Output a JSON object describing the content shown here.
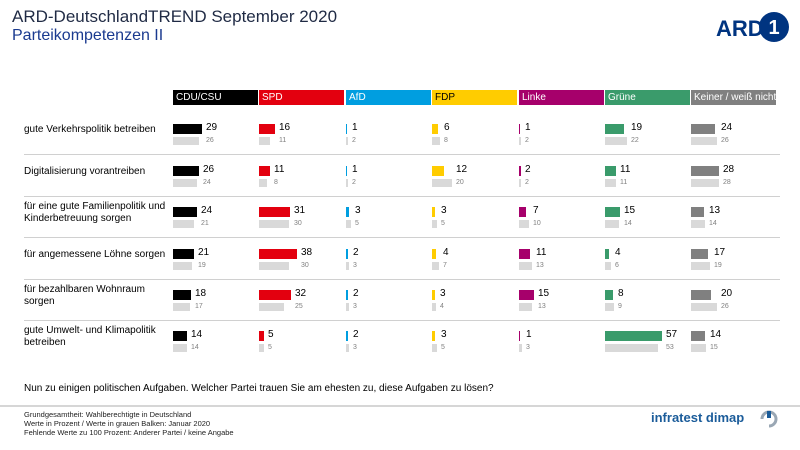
{
  "header": {
    "title": "ARD-DeutschlandTREND September 2020",
    "subtitle": "Parteikompetenzen II",
    "logo_text": "ARD"
  },
  "colors": {
    "CDU/CSU": "#000000",
    "SPD": "#e3000f",
    "AfD": "#009ee0",
    "FDP": "#ffcc00",
    "Linke": "#a6006b",
    "Grüne": "#3a9b6b",
    "Keiner / weiß nicht": "#808080",
    "previous": "#d9d9d9"
  },
  "chart_data": {
    "type": "bar",
    "title": "Parteikompetenzen II",
    "series_names": [
      "CDU/CSU",
      "SPD",
      "AfD",
      "FDP",
      "Linke",
      "Grüne",
      "Keiner / weiß nicht"
    ],
    "categories": [
      "gute Verkehrspolitik betreiben",
      "Digitalisierung vorantreiben",
      "für eine gute Familienpolitik und Kinderbetreuung sorgen",
      "für angemessene Löhne sorgen",
      "für bezahlbaren Wohnraum sorgen",
      "gute Umwelt- und Klimapolitik betreiben"
    ],
    "current": [
      [
        29,
        16,
        1,
        6,
        1,
        19,
        24
      ],
      [
        26,
        11,
        1,
        12,
        2,
        11,
        28
      ],
      [
        24,
        31,
        3,
        3,
        7,
        15,
        13
      ],
      [
        21,
        38,
        2,
        4,
        11,
        4,
        17
      ],
      [
        18,
        32,
        2,
        3,
        15,
        8,
        20
      ],
      [
        14,
        5,
        2,
        3,
        1,
        57,
        14
      ]
    ],
    "previous": [
      [
        26,
        11,
        2,
        8,
        2,
        22,
        26
      ],
      [
        24,
        8,
        2,
        20,
        2,
        11,
        28
      ],
      [
        21,
        30,
        5,
        5,
        10,
        14,
        14
      ],
      [
        19,
        30,
        3,
        7,
        13,
        6,
        19
      ],
      [
        17,
        25,
        3,
        4,
        13,
        9,
        26
      ],
      [
        14,
        5,
        3,
        5,
        3,
        53,
        15
      ]
    ]
  },
  "question": "Nun zu einigen politischen Aufgaben. Welcher Partei trauen Sie am ehesten zu, diese Aufgaben zu lösen?",
  "footnotes": [
    "Grundgesamtheit:  Wahlberechtigte in Deutschland",
    "Werte in Prozent / Werte in grauen Balken: Januar 2020",
    "Fehlende Werte zu 100 Prozent: Anderer Partei / keine Angabe"
  ],
  "brand": "infratest dimap"
}
